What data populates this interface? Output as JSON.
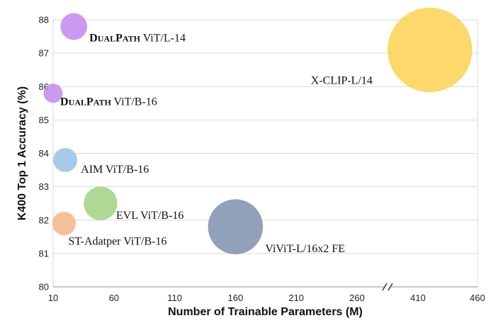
{
  "chart_data": {
    "type": "scatter",
    "title": "",
    "xlabel": "Number of Trainable Parameters (M)",
    "ylabel": "K400 Top 1 Accuracy (%)",
    "xlim": [
      10,
      460
    ],
    "ylim": [
      80,
      88
    ],
    "x_ticks": [
      "10",
      "60",
      "110",
      "160",
      "210",
      "260",
      "410",
      "460"
    ],
    "y_ticks": [
      "80",
      "81",
      "82",
      "83",
      "84",
      "85",
      "86",
      "87",
      "88"
    ],
    "axis_break_after": "260",
    "grid": "horizontal",
    "bubble_chart": true,
    "points": [
      {
        "label_prefix": "DualPath",
        "label_rest": " ViT/L-14",
        "smallcaps_prefix": true,
        "x": 27,
        "y": 87.8,
        "size": 27,
        "color": "#c58ef0"
      },
      {
        "label_prefix": "DualPath",
        "label_rest": " ViT/B-16",
        "smallcaps_prefix": true,
        "x": 10,
        "y": 85.8,
        "size": 10,
        "color": "#c58ef0"
      },
      {
        "label_prefix": "",
        "label_rest": "X-CLIP-L/14",
        "smallcaps_prefix": false,
        "x": 420,
        "y": 87.1,
        "size": 420,
        "color": "#fdd45a"
      },
      {
        "label_prefix": "",
        "label_rest": "AIM ViT/B-16",
        "smallcaps_prefix": false,
        "x": 20,
        "y": 83.8,
        "size": 20,
        "color": "#9fc3e8"
      },
      {
        "label_prefix": "",
        "label_rest": "EVL ViT/B-16",
        "smallcaps_prefix": false,
        "x": 49,
        "y": 82.5,
        "size": 49,
        "color": "#a6d48a"
      },
      {
        "label_prefix": "",
        "label_rest": "ST-Adatper ViT/B-16",
        "smallcaps_prefix": false,
        "x": 19,
        "y": 81.9,
        "size": 19,
        "color": "#f5b88f"
      },
      {
        "label_prefix": "",
        "label_rest": "ViViT-L/16x2 FE",
        "smallcaps_prefix": false,
        "x": 160,
        "y": 81.8,
        "size": 160,
        "color": "#8597b1"
      }
    ]
  }
}
